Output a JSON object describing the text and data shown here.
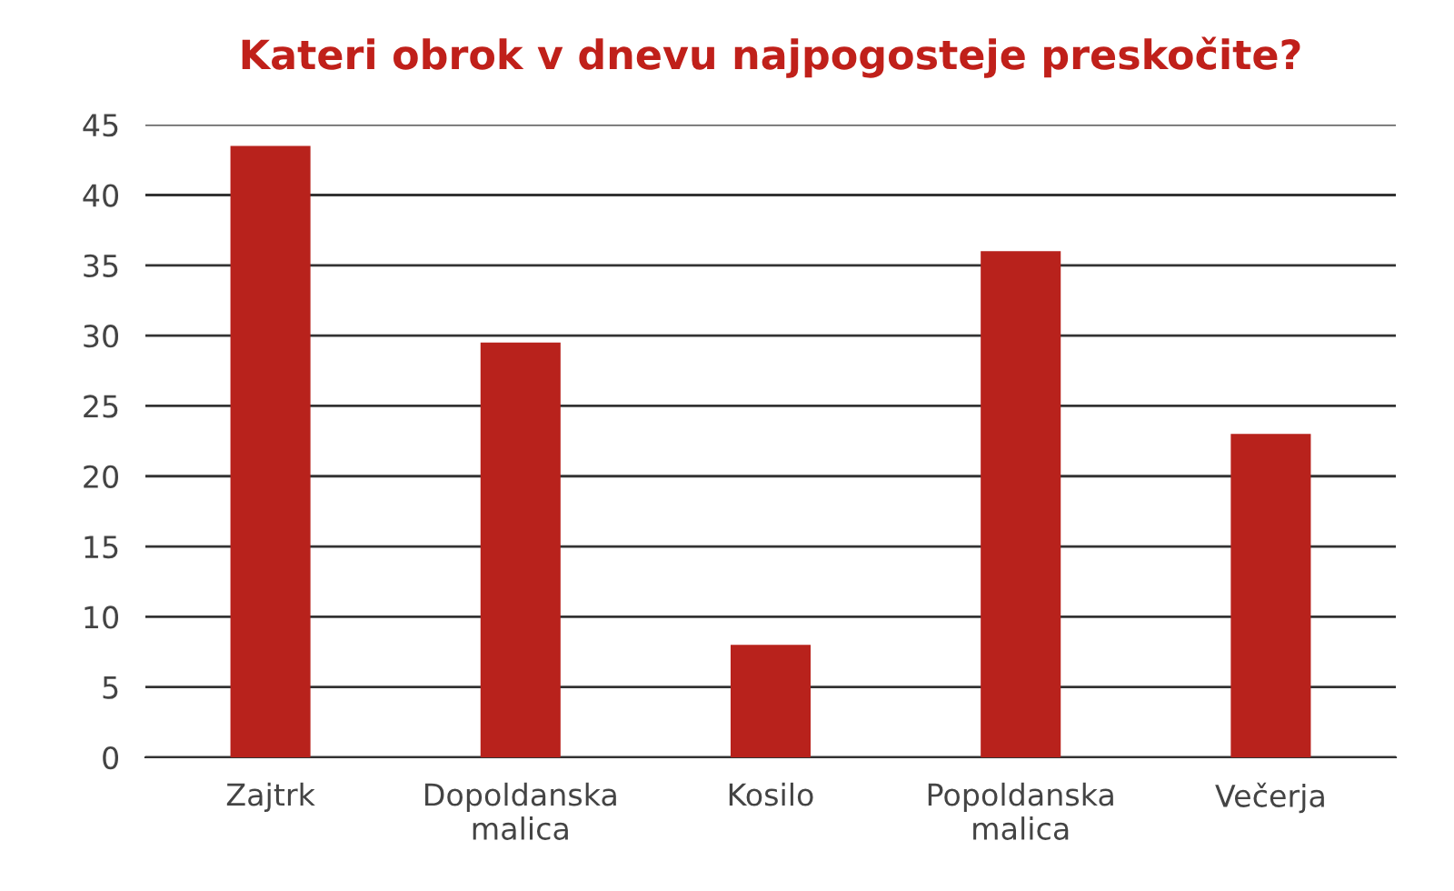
{
  "chart_data": {
    "type": "bar",
    "title": "Kateri obrok v dnevu najpogosteje preskočite?",
    "categories": [
      "Zajtrk",
      "Dopoldanska\nmalica",
      "Kosilo",
      "Popoldanska\nmalica",
      "Večerja"
    ],
    "values": [
      43.5,
      29.5,
      8,
      36,
      23
    ],
    "color": "#b8221c",
    "ylim": [
      0,
      45
    ],
    "yticks": [
      0,
      5,
      10,
      15,
      20,
      25,
      30,
      35,
      40,
      45
    ],
    "grid": "y"
  }
}
